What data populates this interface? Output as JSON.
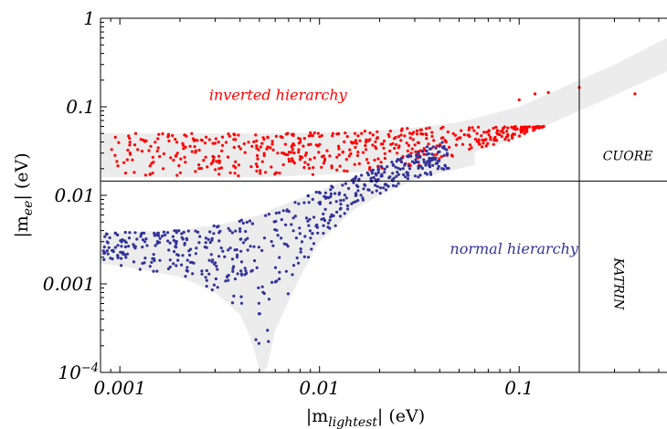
{
  "chart_data": {
    "type": "scatter",
    "title": "",
    "x_scale": "log",
    "y_scale": "log",
    "xlim": [
      0.0008,
      0.55
    ],
    "ylim": [
      0.0001,
      1
    ],
    "xlabel": {
      "main": "|m",
      "sub": "lightest",
      "tail": "| (eV)"
    },
    "ylabel": {
      "main": "|m",
      "sub": "ee",
      "tail": "| (eV)"
    },
    "x_ticks": [
      {
        "value": 0.001,
        "label": "0.001"
      },
      {
        "value": 0.01,
        "label": "0.01"
      },
      {
        "value": 0.1,
        "label": "0.1"
      }
    ],
    "y_ticks": [
      {
        "value": 1,
        "label": "1"
      },
      {
        "value": 0.1,
        "label": "0.1"
      },
      {
        "value": 0.01,
        "label": "0.01"
      },
      {
        "value": 0.001,
        "label": "0.001"
      },
      {
        "value": 0.0001,
        "label": "10",
        "sup": "−4"
      }
    ],
    "reference_lines": [
      {
        "orientation": "horizontal",
        "value": 0.0145,
        "label": "CUORE",
        "label_at": [
          0.35,
          0.025
        ]
      },
      {
        "orientation": "vertical",
        "value": 0.2,
        "label": "KATRIN",
        "label_at": [
          0.3,
          0.001
        ]
      }
    ],
    "bands": [
      {
        "name": "inverted-band",
        "color": "#ececec",
        "x": [
          0.0008,
          0.002,
          0.005,
          0.01,
          0.02,
          0.03,
          0.05,
          0.1,
          0.2,
          0.3,
          0.55
        ],
        "low": [
          0.016,
          0.016,
          0.016,
          0.017,
          0.019,
          0.021,
          0.027,
          0.045,
          0.09,
          0.135,
          0.25
        ],
        "high": [
          0.05,
          0.05,
          0.05,
          0.051,
          0.054,
          0.058,
          0.067,
          0.1,
          0.2,
          0.3,
          0.6
        ]
      },
      {
        "name": "normal-band",
        "color": "#ececec",
        "x": [
          0.0008,
          0.001,
          0.002,
          0.003,
          0.004,
          0.0045,
          0.005,
          0.0052,
          0.0055,
          0.006,
          0.008,
          0.01,
          0.015,
          0.02,
          0.03,
          0.05,
          0.06
        ],
        "low": [
          0.0017,
          0.0016,
          0.0012,
          0.0008,
          0.00045,
          0.00025,
          0.00011,
          0.0001,
          0.00012,
          0.0003,
          0.0012,
          0.003,
          0.007,
          0.01,
          0.015,
          0.02,
          0.022
        ],
        "high": [
          0.0038,
          0.0038,
          0.0041,
          0.0046,
          0.0052,
          0.0056,
          0.006,
          0.0062,
          0.0066,
          0.0072,
          0.0093,
          0.0113,
          0.0162,
          0.021,
          0.031,
          0.051,
          0.061
        ]
      }
    ],
    "series": [
      {
        "name": "inverted hierarchy",
        "color": "#ff0000",
        "label_at": [
          0.0028,
          0.12
        ],
        "generator": {
          "x_range": [
            0.0009,
            0.14
          ],
          "count": 520,
          "y_band": "inverted-band",
          "y_min": 0.0145,
          "y_max": 0.06
        }
      },
      {
        "name": "normal hierarchy",
        "color": "#333399",
        "label_at": [
          0.045,
          0.0022
        ],
        "generator": {
          "x_range": [
            0.0008,
            0.045
          ],
          "count": 560,
          "y_band": "normal-band",
          "y_min": 0.0002,
          "y_max": 0.04
        }
      }
    ],
    "extra_points": [
      {
        "series": "inverted hierarchy",
        "points": [
          [
            0.2,
            0.165
          ],
          [
            0.14,
            0.145
          ],
          [
            0.38,
            0.14
          ],
          [
            0.12,
            0.14
          ],
          [
            0.1,
            0.12
          ]
        ]
      }
    ],
    "grid": false,
    "legend": "none"
  }
}
